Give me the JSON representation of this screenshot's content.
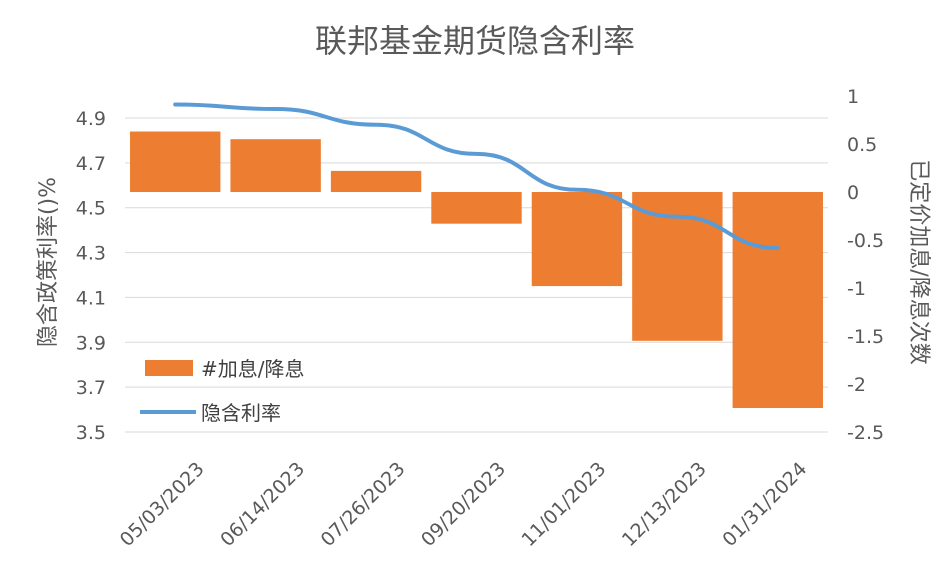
{
  "chart_data": {
    "type": "bar-line-combo",
    "title": "联邦基金期货隐含利率",
    "categories": [
      "05/03/2023",
      "06/14/2023",
      "07/26/2023",
      "09/20/2023",
      "11/01/2023",
      "12/13/2023",
      "01/31/2024"
    ],
    "series": [
      {
        "name": "#加息/降息",
        "type": "bar",
        "axis": "right",
        "color": "#ED7D31",
        "values": [
          0.63,
          0.55,
          0.22,
          -0.33,
          -0.98,
          -1.55,
          -2.25
        ]
      },
      {
        "name": "隐含利率",
        "type": "line",
        "axis": "left",
        "color": "#5B9BD5",
        "values": [
          4.96,
          4.94,
          4.87,
          4.74,
          4.58,
          4.46,
          4.32
        ]
      }
    ],
    "left_axis": {
      "label": "隐含政策利率()%",
      "ylim": [
        3.5,
        5.0
      ],
      "ticks": [
        "4.9",
        "4.7",
        "4.5",
        "4.3",
        "4.1",
        "3.9",
        "3.7",
        "3.5"
      ],
      "tick_values": [
        4.9,
        4.7,
        4.5,
        4.3,
        4.1,
        3.9,
        3.7,
        3.5
      ]
    },
    "right_axis": {
      "label": "已定价加息/降息次数",
      "ylim": [
        -2.5,
        1.0
      ],
      "ticks": [
        "1",
        "0.5",
        "0",
        "-0.5",
        "-1",
        "-1.5",
        "-2",
        "-2.5"
      ],
      "tick_values": [
        1,
        0.5,
        0,
        -0.5,
        -1,
        -1.5,
        -2,
        -2.5
      ]
    },
    "grid": true,
    "legend_position": "bottom-left-inside"
  }
}
